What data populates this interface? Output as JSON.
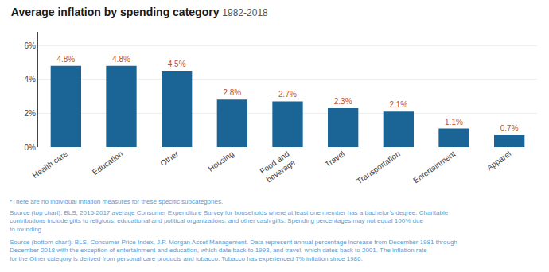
{
  "chart_data": {
    "type": "bar",
    "title": "Average inflation by spending category",
    "subtitle": "1982-2018",
    "categories": [
      "Health care",
      "Education",
      "Other",
      "Housing",
      "Food and\nbeverage",
      "Travel",
      "Transportation",
      "Entertainment",
      "Apparel"
    ],
    "values": [
      4.8,
      4.8,
      4.5,
      2.8,
      2.7,
      2.3,
      2.1,
      1.1,
      0.7
    ],
    "value_labels": [
      "4.8%",
      "4.8%",
      "4.5%",
      "2.8%",
      "2.7%",
      "2.3%",
      "2.1%",
      "1.1%",
      "0.7%"
    ],
    "data_labels": true,
    "color": "#1a6496",
    "ylim": [
      0,
      6.8
    ],
    "yticks": [
      {
        "value": 0,
        "label": "0%"
      },
      {
        "value": 2,
        "label": "2%"
      },
      {
        "value": 4,
        "label": "4%"
      },
      {
        "value": 6,
        "label": "6%"
      }
    ],
    "grid": true,
    "annotations": [
      "*There are no individual inflation measures for these specific subcategories.",
      "Source (top chart): BLS, 2015-2017 average Consumer Expenditure Survey for households where at least one member has a bachelor’s degree. Charitable contributions include gifts to religious, educational and political organizations, and other cash gifts. Spending percentages may not equal 100% due to rounding.",
      "Source (bottom chart): BLS, Consumer Price Index, J.P. Morgan Asset Management. Data represent annual percentage increase from December 1981 through December 2018 with the exception of entertainment and education, which date back to 1993, and travel, which dates back to 2001. The inflation rate for the Other category is derived from personal care products and tobacco. Tobacco has experienced 7% inflation since 1986."
    ]
  }
}
